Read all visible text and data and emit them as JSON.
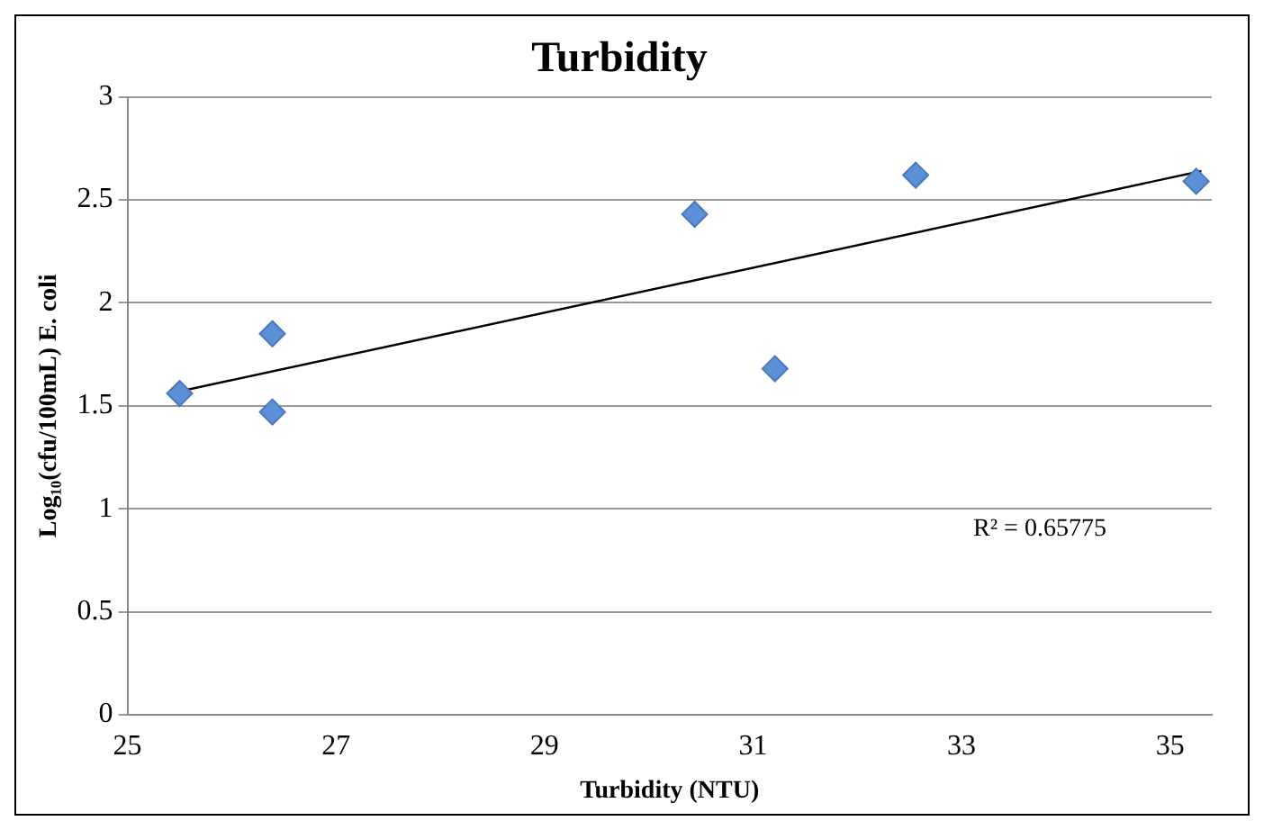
{
  "chart_data": {
    "type": "scatter",
    "title": "Turbidity",
    "xlabel": "Turbidity (NTU)",
    "ylabel": "Log₁₀(cfu/100mL) E. coli",
    "xlim": [
      25,
      35.4
    ],
    "xticks": [
      25,
      27,
      29,
      31,
      33,
      35
    ],
    "ylim": [
      0,
      3
    ],
    "yticks": [
      0,
      0.5,
      1,
      1.5,
      2,
      2.5,
      3
    ],
    "grid": "y",
    "legend": false,
    "marker": "diamond",
    "series": [
      {
        "type": "scatter",
        "color": "#5b8fd6",
        "x": [
          25.5,
          26.39,
          26.39,
          30.44,
          31.21,
          32.56,
          35.25
        ],
        "values": [
          1.56,
          1.85,
          1.47,
          2.43,
          1.68,
          2.62,
          2.59
        ]
      },
      {
        "type": "line",
        "color": "#000000",
        "marker": "none",
        "x": [
          25.5,
          35.3
        ],
        "values": [
          1.57,
          2.64
        ]
      }
    ],
    "annotations": [
      "R² = 0.65775"
    ]
  }
}
